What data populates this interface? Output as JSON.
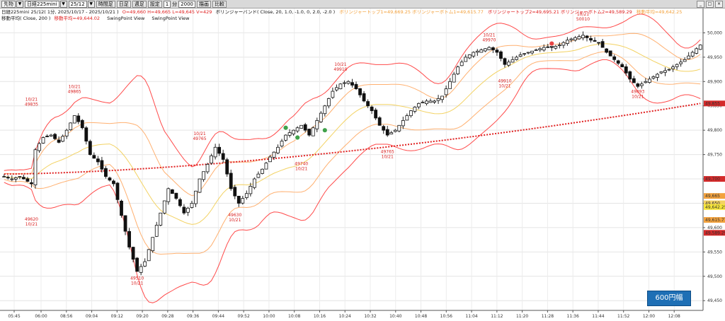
{
  "toolbar": {
    "instrument": "先物",
    "product": "日経225mini",
    "contract": "25/12",
    "buttons": [
      "時間足",
      "日足",
      "週足",
      "設定"
    ],
    "interval": "1",
    "interval_unit": "分",
    "bar_count": "2000",
    "buttons2": [
      "描画",
      "比較"
    ]
  },
  "legend": {
    "line1_prefix": "日経225mini 25/12( 1分, 2025/10/17 - 2025/10/21 )",
    "ohlc": "O=49,660 H=49,665 L=49,645 V=429",
    "bb_label": "ボリンジャーバンド( Close, 20, 1.0, -1.0, 0, 2.0, -2.0 )",
    "bb_values": "ボリンジャートップ1=49,669.25  ボリンジャーボトム1=49,615.77",
    "bb_values2": "ボリンジャートップ2=49,695.21  ボリンジャーボトム2=49,589.29",
    "ma_tail": "移動平均=49,642.25",
    "line2_prefix": "移動平均( Close, 200 )",
    "ma_value": "移動平均=49,644.02",
    "view1": "SwingPoint View",
    "view2": "SwingPoint View"
  },
  "badge": "600円幅",
  "chart_data": {
    "type": "candlestick",
    "title": "日経225mini 25/12( 1分, 2025/10/17 - 2025/10/21 )",
    "ylim": [
      49430,
      50050
    ],
    "y_ticks": [
      49450,
      49500,
      49550,
      49600,
      49650,
      49700,
      49750,
      49800,
      49850,
      49900,
      49950,
      50000
    ],
    "x_ticks": [
      "05:45",
      "06:00",
      "08:56",
      "09:04",
      "09:12",
      "09:20",
      "09:28",
      "09:36",
      "09:44",
      "09:52",
      "10:00",
      "10:08",
      "10:16",
      "10:24",
      "10:32",
      "10:40",
      "10:48",
      "10:56",
      "11:04",
      "11:12",
      "11:20",
      "11:28",
      "11:36",
      "11:44",
      "11:52",
      "12:00",
      "12:08"
    ],
    "price_path": [
      [
        0,
        49705
      ],
      [
        2,
        49700
      ],
      [
        4,
        49705
      ],
      [
        7,
        49690
      ],
      [
        8,
        49760
      ],
      [
        10,
        49785
      ],
      [
        12,
        49790
      ],
      [
        14,
        49775
      ],
      [
        16,
        49800
      ],
      [
        18,
        49830
      ],
      [
        20,
        49805
      ],
      [
        22,
        49750
      ],
      [
        24,
        49735
      ],
      [
        26,
        49705
      ],
      [
        28,
        49690
      ],
      [
        30,
        49625
      ],
      [
        32,
        49560
      ],
      [
        34,
        49510
      ],
      [
        36,
        49530
      ],
      [
        38,
        49580
      ],
      [
        40,
        49630
      ],
      [
        42,
        49680
      ],
      [
        44,
        49660
      ],
      [
        46,
        49630
      ],
      [
        48,
        49650
      ],
      [
        50,
        49700
      ],
      [
        52,
        49730
      ],
      [
        54,
        49765
      ],
      [
        56,
        49740
      ],
      [
        58,
        49680
      ],
      [
        60,
        49650
      ],
      [
        62,
        49670
      ],
      [
        64,
        49700
      ],
      [
        66,
        49720
      ],
      [
        68,
        49745
      ],
      [
        70,
        49765
      ],
      [
        72,
        49790
      ],
      [
        74,
        49800
      ],
      [
        76,
        49810
      ],
      [
        78,
        49790
      ],
      [
        80,
        49820
      ],
      [
        82,
        49850
      ],
      [
        84,
        49880
      ],
      [
        86,
        49895
      ],
      [
        88,
        49900
      ],
      [
        90,
        49885
      ],
      [
        92,
        49860
      ],
      [
        94,
        49840
      ],
      [
        96,
        49810
      ],
      [
        98,
        49790
      ],
      [
        100,
        49800
      ],
      [
        102,
        49820
      ],
      [
        104,
        49840
      ],
      [
        106,
        49855
      ],
      [
        108,
        49860
      ],
      [
        110,
        49860
      ],
      [
        112,
        49870
      ],
      [
        114,
        49900
      ],
      [
        116,
        49930
      ],
      [
        118,
        49950
      ],
      [
        120,
        49960
      ],
      [
        122,
        49965
      ],
      [
        124,
        49970
      ],
      [
        126,
        49960
      ],
      [
        128,
        49935
      ],
      [
        130,
        49945
      ],
      [
        132,
        49955
      ],
      [
        134,
        49960
      ],
      [
        136,
        49965
      ],
      [
        138,
        49970
      ],
      [
        140,
        49970
      ],
      [
        142,
        49975
      ],
      [
        144,
        49985
      ],
      [
        146,
        49990
      ],
      [
        148,
        49995
      ],
      [
        150,
        49985
      ],
      [
        152,
        49980
      ],
      [
        154,
        49960
      ],
      [
        156,
        49945
      ],
      [
        158,
        49930
      ],
      [
        160,
        49905
      ],
      [
        162,
        49890
      ],
      [
        164,
        49900
      ],
      [
        166,
        49910
      ],
      [
        168,
        49920
      ],
      [
        170,
        49925
      ],
      [
        172,
        49935
      ],
      [
        174,
        49945
      ],
      [
        176,
        49960
      ],
      [
        178,
        49975
      ]
    ],
    "ma200": {
      "name": "移動平均",
      "start": 49710,
      "end": 49855,
      "color": "#e02020"
    },
    "bb_colors": {
      "band2": "#ff4a4a",
      "band1": "#ffb070",
      "mid": "#f3d262"
    },
    "annotations": [
      {
        "text": [
          "10/21",
          "49835"
        ],
        "i": 7,
        "price": 49840,
        "pos": "above"
      },
      {
        "text": [
          "10/21",
          "49865"
        ],
        "i": 18,
        "price": 49866,
        "pos": "above"
      },
      {
        "text": [
          "49620",
          "10/21"
        ],
        "i": 7,
        "price": 49626,
        "pos": "below"
      },
      {
        "text": [
          "49510",
          "10/21"
        ],
        "i": 34,
        "price": 49505,
        "pos": "below"
      },
      {
        "text": [
          "10/21",
          "49765"
        ],
        "i": 50,
        "price": 49770,
        "pos": "above"
      },
      {
        "text": [
          "49630",
          "10/21"
        ],
        "i": 59,
        "price": 49635,
        "pos": "below"
      },
      {
        "text": [
          "49740",
          "10/21"
        ],
        "i": 76,
        "price": 49740,
        "pos": "below"
      },
      {
        "text": [
          "10/21",
          "49910"
        ],
        "i": 86,
        "price": 49912,
        "pos": "above"
      },
      {
        "text": [
          "49765",
          "10/21"
        ],
        "i": 98,
        "price": 49765,
        "pos": "below"
      },
      {
        "text": [
          "10/21",
          "49970"
        ],
        "i": 124,
        "price": 49972,
        "pos": "above"
      },
      {
        "text": [
          "49910",
          "10/21"
        ],
        "i": 128,
        "price": 49910,
        "pos": "below"
      },
      {
        "text": [
          "10/21",
          "50010"
        ],
        "i": 148,
        "price": 50015,
        "pos": "above"
      },
      {
        "text": [
          "49893",
          "10/21"
        ],
        "i": 162,
        "price": 49888,
        "pos": "below"
      }
    ],
    "price_tags": [
      {
        "price": 49700,
        "label": "49,700",
        "color": "#d42a2a"
      },
      {
        "price": 49665,
        "label": "49,665",
        "color": "#f3a23e"
      },
      {
        "price": 49650,
        "label": "49,650",
        "color": "#f3d262"
      },
      {
        "price": 49642.25,
        "label": "49,642.25",
        "color": "#f7e63a"
      },
      {
        "price": 49615.77,
        "label": "49,615.77",
        "color": "#f3a23e"
      },
      {
        "price": 49589.29,
        "label": "49,589.29",
        "color": "#d42a2a"
      },
      {
        "price": 49855,
        "label": "49,855",
        "color": "#d42a2a"
      }
    ]
  }
}
